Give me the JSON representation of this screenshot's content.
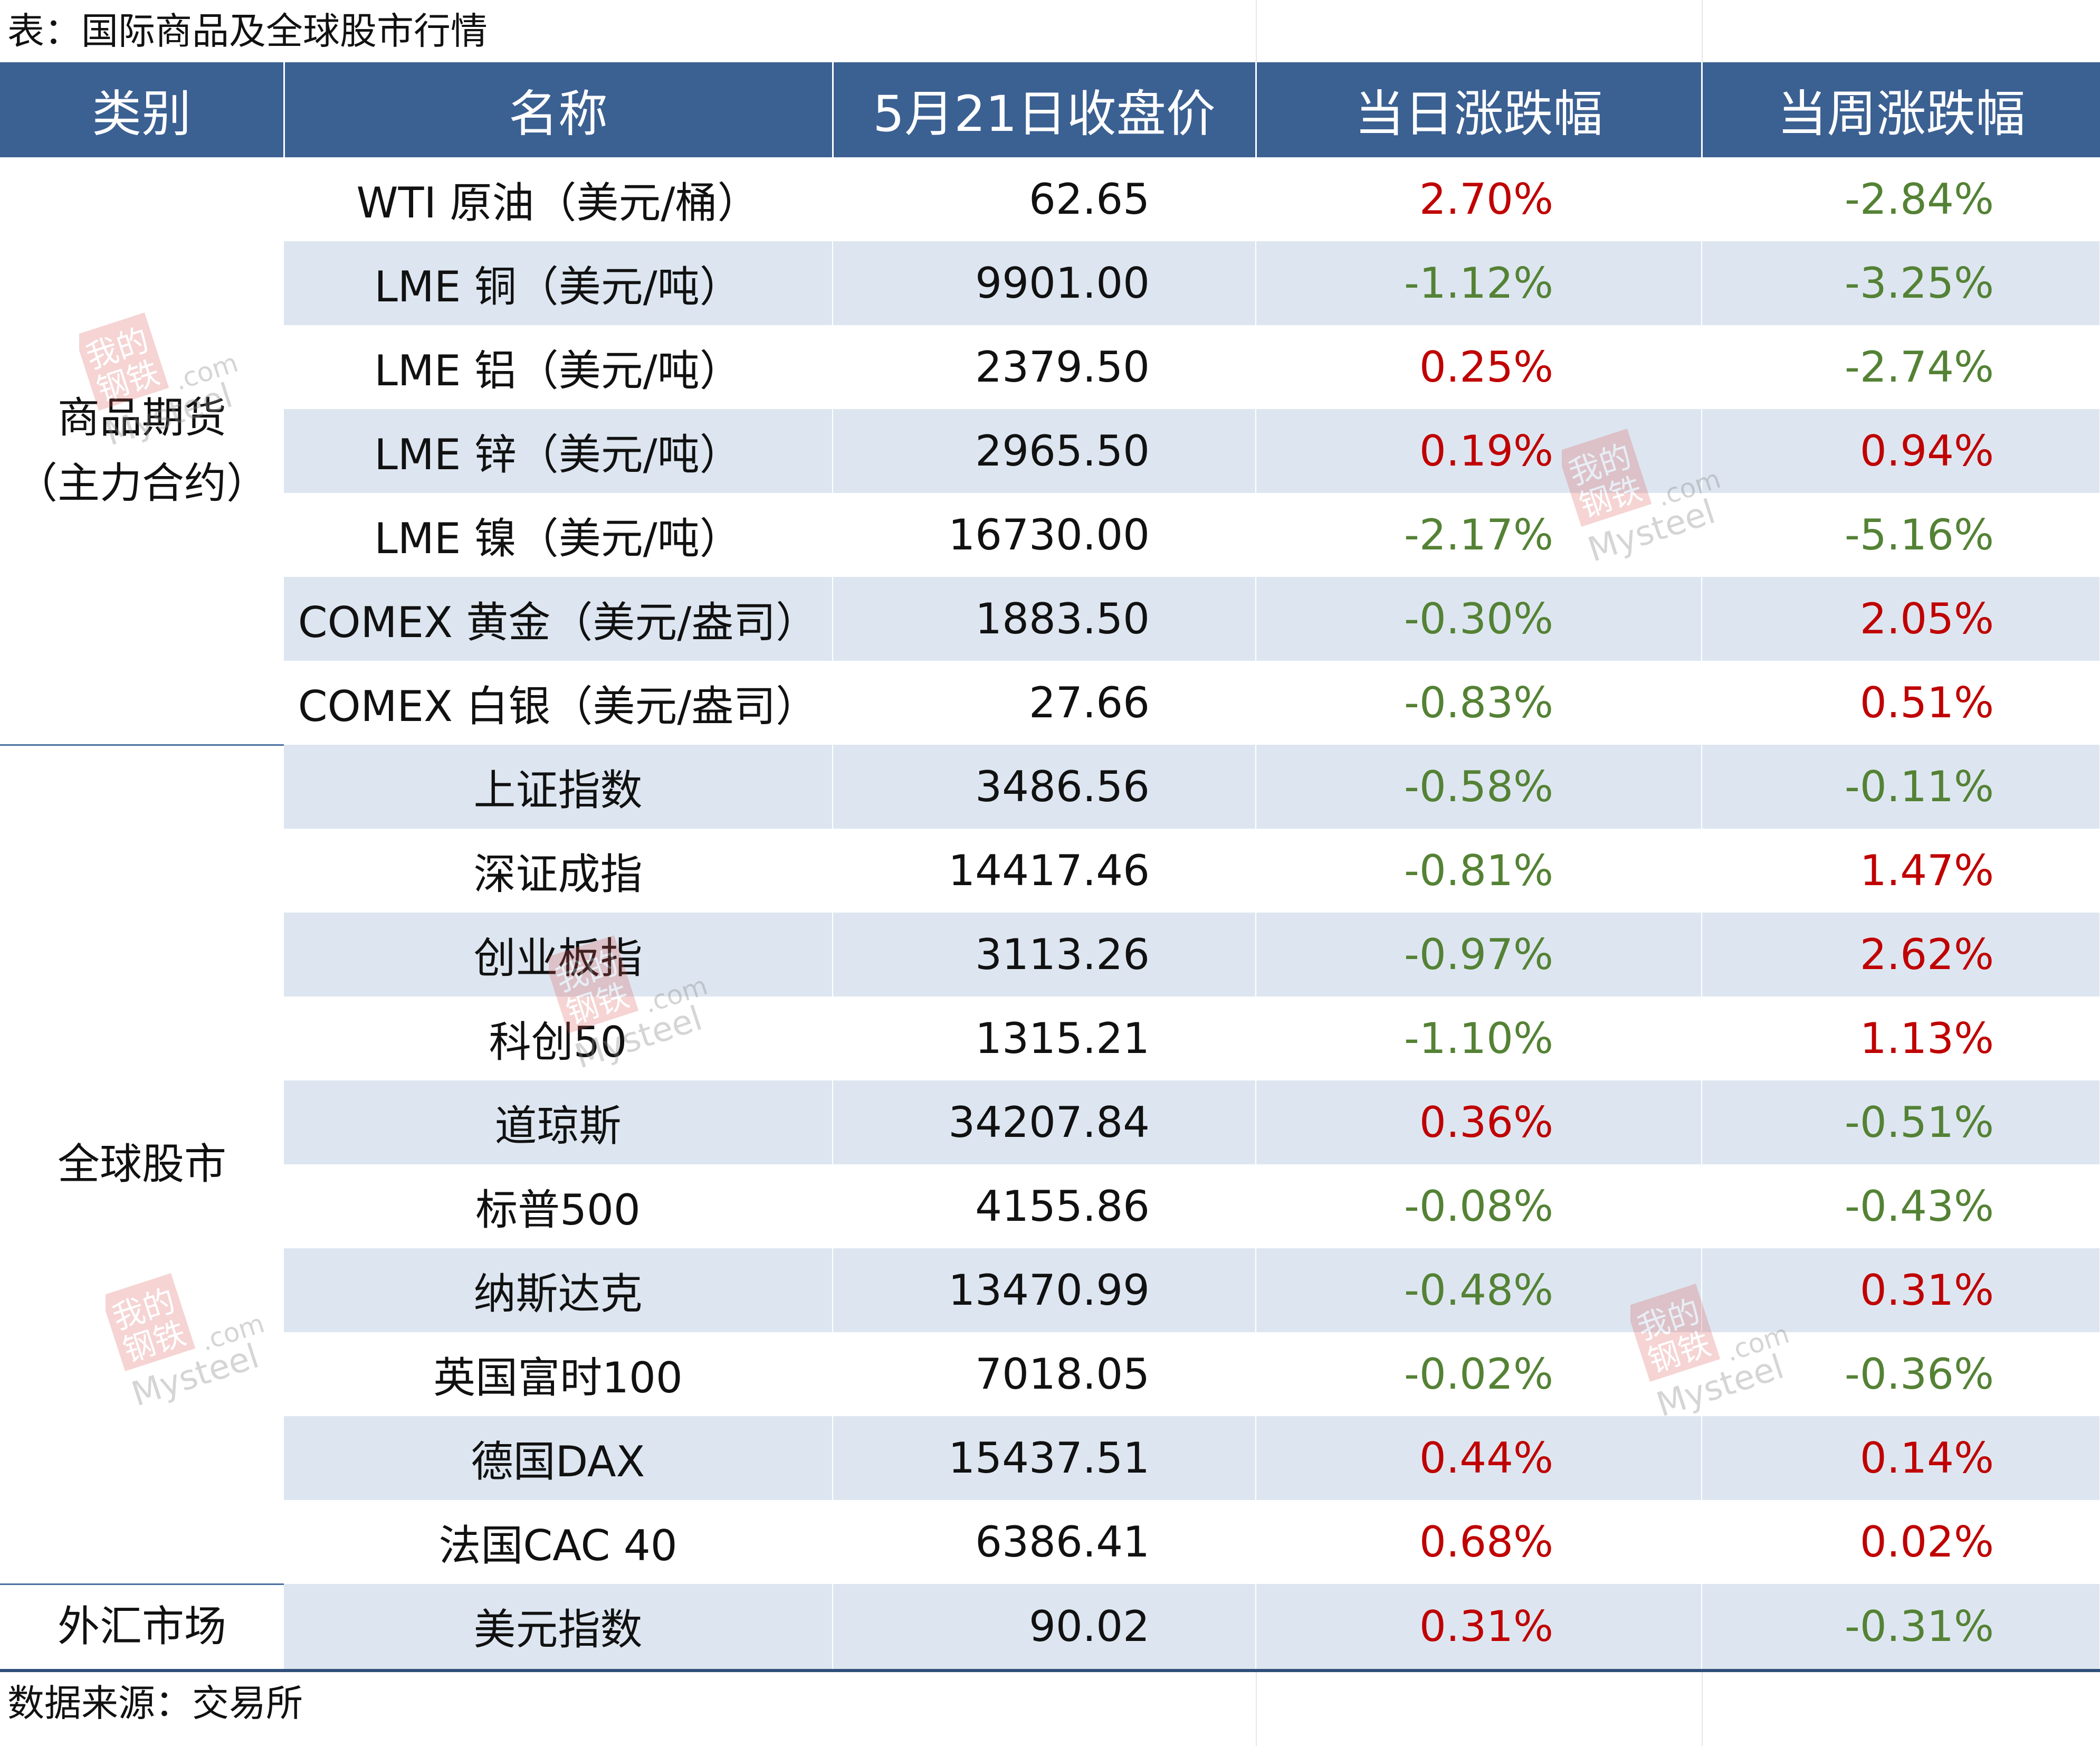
{
  "title": "表：国际商品及全球股市行情",
  "headers": [
    "类别",
    "名称",
    "5月21日收盘价",
    "当日涨跌幅",
    "当周涨跌幅"
  ],
  "groups": [
    {
      "category": "商品期货\n（主力合约）",
      "rows": [
        {
          "name": "WTI 原油（美元/桶）",
          "price": "62.65",
          "day": "2.70%",
          "week": "-2.84%"
        },
        {
          "name": "LME 铜（美元/吨）",
          "price": "9901.00",
          "day": "-1.12%",
          "week": "-3.25%"
        },
        {
          "name": "LME 铝（美元/吨）",
          "price": "2379.50",
          "day": "0.25%",
          "week": "-2.74%"
        },
        {
          "name": "LME 锌（美元/吨）",
          "price": "2965.50",
          "day": "0.19%",
          "week": "0.94%"
        },
        {
          "name": "LME 镍（美元/吨）",
          "price": "16730.00",
          "day": "-2.17%",
          "week": "-5.16%"
        },
        {
          "name": "COMEX 黄金（美元/盎司）",
          "price": "1883.50",
          "day": "-0.30%",
          "week": "2.05%"
        },
        {
          "name": "COMEX 白银（美元/盎司）",
          "price": "27.66",
          "day": "-0.83%",
          "week": "0.51%"
        }
      ]
    },
    {
      "category": "全球股市",
      "rows": [
        {
          "name": "上证指数",
          "price": "3486.56",
          "day": "-0.58%",
          "week": "-0.11%"
        },
        {
          "name": "深证成指",
          "price": "14417.46",
          "day": "-0.81%",
          "week": "1.47%"
        },
        {
          "name": "创业板指",
          "price": "3113.26",
          "day": "-0.97%",
          "week": "2.62%"
        },
        {
          "name": "科创50",
          "price": "1315.21",
          "day": "-1.10%",
          "week": "1.13%"
        },
        {
          "name": "道琼斯",
          "price": "34207.84",
          "day": "0.36%",
          "week": "-0.51%"
        },
        {
          "name": "标普500",
          "price": "4155.86",
          "day": "-0.08%",
          "week": "-0.43%"
        },
        {
          "name": "纳斯达克",
          "price": "13470.99",
          "day": "-0.48%",
          "week": "0.31%"
        },
        {
          "name": "英国富时100",
          "price": "7018.05",
          "day": "-0.02%",
          "week": "-0.36%"
        },
        {
          "name": "德国DAX",
          "price": "15437.51",
          "day": "0.44%",
          "week": "0.14%"
        },
        {
          "name": "法国CAC 40",
          "price": "6386.41",
          "day": "0.68%",
          "week": "0.02%"
        }
      ]
    },
    {
      "category": "外汇市场",
      "rows": [
        {
          "name": "美元指数",
          "price": "90.02",
          "day": "0.31%",
          "week": "-0.31%"
        }
      ]
    }
  ],
  "source": "数据来源：交易所",
  "watermark": {
    "cn": "我的钢铁",
    "en": "Mysteel",
    "domain": ".com"
  },
  "colors": {
    "header_bg": "#3b6092",
    "row_alt": "#dde6f0",
    "up": "#c00000",
    "down": "#548235"
  }
}
